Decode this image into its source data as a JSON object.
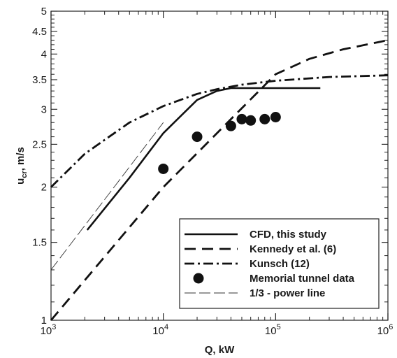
{
  "chart_data": {
    "type": "line",
    "x_scale": "log",
    "y_scale": "log",
    "xlim": [
      1000,
      1000000
    ],
    "ylim": [
      1,
      5
    ],
    "grid": false,
    "legend_position": "bottom-right",
    "xlabel": "Q, kW",
    "ylabel_main": "u",
    "ylabel_sub": "cr",
    "ylabel_unit": ", m/s",
    "x_ticks": [
      {
        "value": 1000,
        "base": "10",
        "exp": "3"
      },
      {
        "value": 10000,
        "base": "10",
        "exp": "4"
      },
      {
        "value": 100000,
        "base": "10",
        "exp": "5"
      },
      {
        "value": 1000000,
        "base": "10",
        "exp": "6"
      }
    ],
    "y_ticks": [
      {
        "value": 1,
        "label": "1"
      },
      {
        "value": 1.5,
        "label": "1.5"
      },
      {
        "value": 2,
        "label": "2"
      },
      {
        "value": 2.5,
        "label": "2.5"
      },
      {
        "value": 3,
        "label": "3"
      },
      {
        "value": 3.5,
        "label": "3.5"
      },
      {
        "value": 4,
        "label": "4"
      },
      {
        "value": 4.5,
        "label": "4.5"
      },
      {
        "value": 5,
        "label": "5"
      }
    ],
    "series": [
      {
        "name": "CFD, this study",
        "style": "solid",
        "x": [
          2100,
          5000,
          10000,
          20000,
          30000,
          40000,
          100000,
          250000
        ],
        "y": [
          1.6,
          2.1,
          2.65,
          3.15,
          3.3,
          3.35,
          3.35,
          3.35
        ]
      },
      {
        "name": "Kennedy et al. (6)",
        "style": "dashed",
        "x": [
          1000,
          10000,
          100000,
          200000,
          400000,
          700000,
          1000000
        ],
        "y": [
          1.0,
          2.0,
          3.6,
          3.9,
          4.1,
          4.22,
          4.3
        ]
      },
      {
        "name": "Kunsch (12)",
        "style": "dashdot",
        "x": [
          1000,
          2000,
          5000,
          10000,
          20000,
          30000,
          50000,
          100000,
          300000,
          1000000
        ],
        "y": [
          2.0,
          2.38,
          2.8,
          3.05,
          3.25,
          3.33,
          3.41,
          3.48,
          3.55,
          3.58
        ]
      },
      {
        "name": "Memorial tunnel data",
        "style": "marker",
        "x": [
          10000,
          20000,
          40000,
          50000,
          60000,
          80000,
          100000
        ],
        "y": [
          2.2,
          2.6,
          2.75,
          2.85,
          2.83,
          2.85,
          2.88
        ]
      },
      {
        "name": "1/3 - power line",
        "style": "thin-dashed",
        "x": [
          1000,
          10000
        ],
        "y": [
          1.3,
          2.8
        ]
      }
    ]
  }
}
